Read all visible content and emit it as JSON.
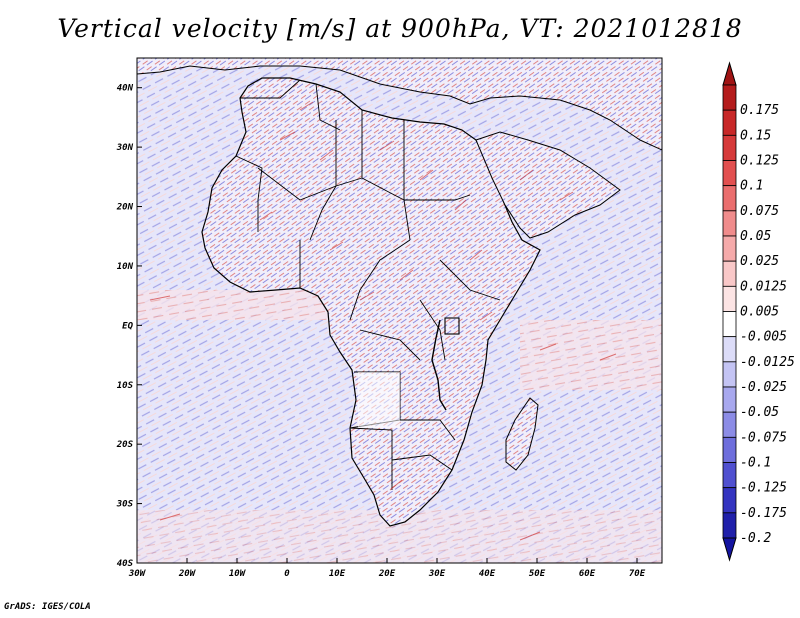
{
  "title": "Vertical velocity [m/s] at 900hPa, VT: 2021012818",
  "footer": "GrADS: IGES/COLA",
  "map": {
    "region": "Africa",
    "lon_range": [
      -30,
      75
    ],
    "lat_range": [
      -40,
      45
    ],
    "lon_ticks": [
      {
        "value": -30,
        "label": "30W"
      },
      {
        "value": -20,
        "label": "20W"
      },
      {
        "value": -10,
        "label": "10W"
      },
      {
        "value": 0,
        "label": "0"
      },
      {
        "value": 10,
        "label": "10E"
      },
      {
        "value": 20,
        "label": "20E"
      },
      {
        "value": 30,
        "label": "30E"
      },
      {
        "value": 40,
        "label": "40E"
      },
      {
        "value": 50,
        "label": "50E"
      },
      {
        "value": 60,
        "label": "60E"
      },
      {
        "value": 70,
        "label": "70E"
      }
    ],
    "lat_ticks": [
      {
        "value": 40,
        "label": "40N"
      },
      {
        "value": 30,
        "label": "30N"
      },
      {
        "value": 20,
        "label": "20N"
      },
      {
        "value": 10,
        "label": "10N"
      },
      {
        "value": 0,
        "label": "EQ"
      },
      {
        "value": -10,
        "label": "10S"
      },
      {
        "value": -20,
        "label": "20S"
      },
      {
        "value": -30,
        "label": "30S"
      },
      {
        "value": -40,
        "label": "40S"
      }
    ]
  },
  "colorbar": {
    "units": "m/s",
    "levels": [
      {
        "label": "0.175",
        "color": "#b41c1c"
      },
      {
        "label": "0.15",
        "color": "#c82828"
      },
      {
        "label": "0.125",
        "color": "#d63a3a"
      },
      {
        "label": "0.1",
        "color": "#e25050"
      },
      {
        "label": "0.075",
        "color": "#ea6e6e"
      },
      {
        "label": "0.05",
        "color": "#f08c8c"
      },
      {
        "label": "0.025",
        "color": "#f5aaaa"
      },
      {
        "label": "0.0125",
        "color": "#f9c8c8"
      },
      {
        "label": "0.005",
        "color": "#fce4e4"
      },
      {
        "label": "-0.005",
        "color": "#ffffff"
      },
      {
        "label": "-0.0125",
        "color": "#dcdcf8"
      },
      {
        "label": "-0.025",
        "color": "#c4c4f4"
      },
      {
        "label": "-0.05",
        "color": "#a8a8ee"
      },
      {
        "label": "-0.075",
        "color": "#8c8ce6"
      },
      {
        "label": "-0.1",
        "color": "#6e6edc"
      },
      {
        "label": "-0.125",
        "color": "#5050d0"
      },
      {
        "label": "-0.175",
        "color": "#3434c0"
      },
      {
        "label": "-0.2",
        "color": "#2020aa"
      }
    ],
    "top_arrow_color": "#a01414",
    "bottom_arrow_color": "#1414a0"
  },
  "colors": {
    "field_background": "#e4e4f8",
    "land_field": "#eeeefa",
    "coastline": "#000000"
  }
}
